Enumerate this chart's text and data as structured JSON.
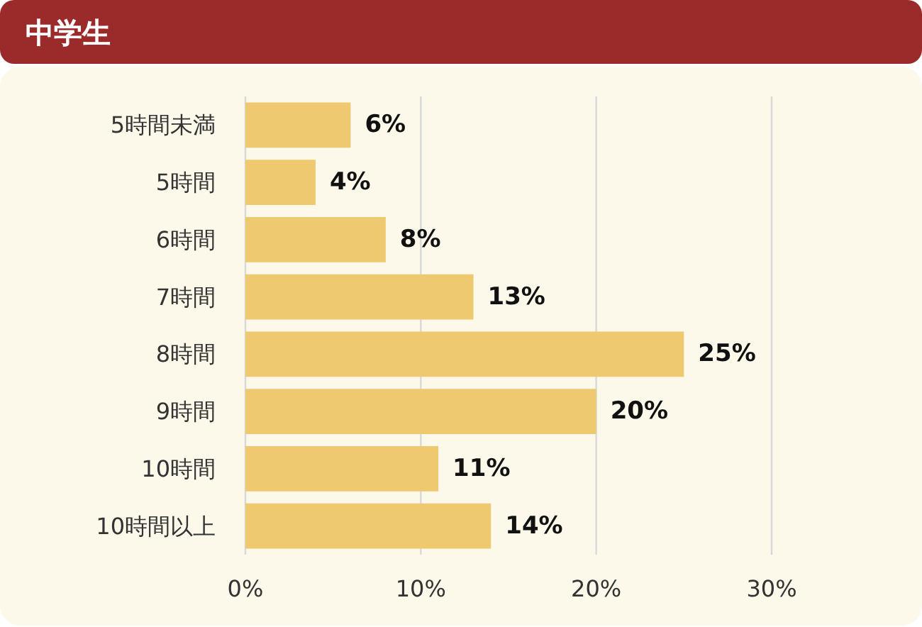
{
  "chart_data": {
    "type": "bar",
    "orientation": "horizontal",
    "title": "中学生",
    "categories": [
      "5時間未満",
      "5時間",
      "6時間",
      "7時間",
      "8時間",
      "9時間",
      "10時間",
      "10時間以上"
    ],
    "values": [
      6,
      4,
      8,
      13,
      25,
      20,
      11,
      14
    ],
    "value_labels": [
      "6%",
      "4%",
      "8%",
      "13%",
      "25%",
      "20%",
      "11%",
      "14%"
    ],
    "color": "#efc96f",
    "xlim": [
      0,
      30
    ],
    "xticks": [
      {
        "value": 0,
        "label": "0%"
      },
      {
        "value": 10,
        "label": "10%"
      },
      {
        "value": 20,
        "label": "20%"
      },
      {
        "value": 30,
        "label": "30%"
      }
    ],
    "grid": "x"
  }
}
